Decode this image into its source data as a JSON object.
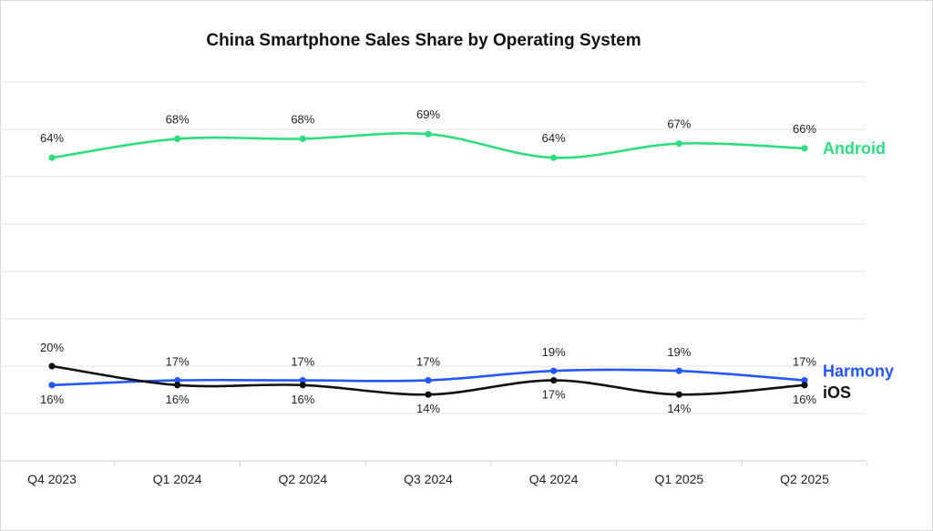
{
  "chart_data": {
    "type": "line",
    "title": "China Smartphone Sales Share by Operating System",
    "categories": [
      "Q4 2023",
      "Q1 2024",
      "Q2 2024",
      "Q3 2024",
      "Q4 2024",
      "Q1 2025",
      "Q2 2025"
    ],
    "series": [
      {
        "name": "Android",
        "values": [
          64,
          68,
          68,
          69,
          64,
          67,
          66
        ],
        "labels": [
          "64%",
          "68%",
          "68%",
          "69%",
          "64%",
          "67%",
          "66%"
        ],
        "color": "#2ede7c"
      },
      {
        "name": "Harmony",
        "values": [
          16,
          17,
          17,
          17,
          19,
          19,
          17
        ],
        "labels": [
          "16%",
          "17%",
          "17%",
          "17%",
          "19%",
          "19%",
          "17%"
        ],
        "color": "#2457f5"
      },
      {
        "name": "iOS",
        "values": [
          20,
          16,
          16,
          14,
          17,
          14,
          16
        ],
        "labels": [
          "20%",
          "16%",
          "16%",
          "14%",
          "17%",
          "14%",
          "16%"
        ],
        "color": "#111111"
      }
    ],
    "ylim": [
      0,
      80
    ],
    "grid": true,
    "legend": "inline-right"
  }
}
